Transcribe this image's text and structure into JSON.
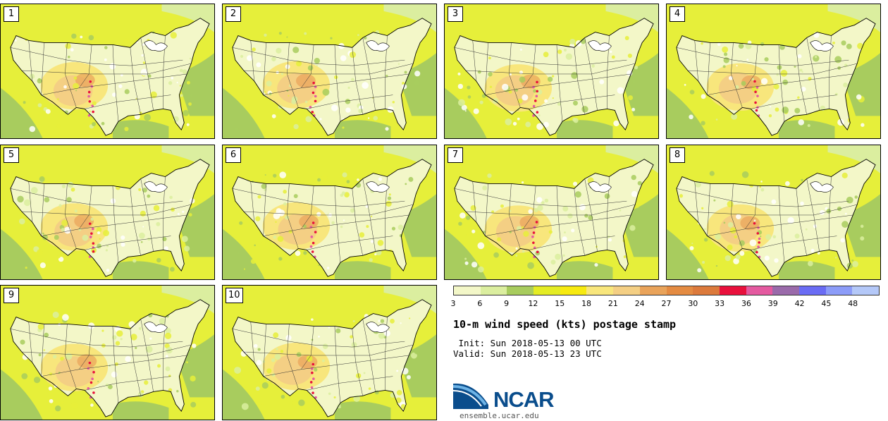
{
  "figure": {
    "title": "10-m wind speed (kts) postage stamp",
    "init_line": " Init: Sun 2018-05-13 00 UTC",
    "valid_line": "Valid: Sun 2018-05-13 23 UTC"
  },
  "panels": [
    "1",
    "2",
    "3",
    "4",
    "5",
    "6",
    "7",
    "8",
    "9",
    "10"
  ],
  "colorbar": {
    "ticks": [
      "3",
      "6",
      "9",
      "12",
      "15",
      "18",
      "21",
      "24",
      "27",
      "30",
      "33",
      "36",
      "39",
      "42",
      "45",
      "48"
    ],
    "colors": [
      "#f3f7c8",
      "#dbee9f",
      "#a8cc5e",
      "#e4ec24",
      "#f7ea10",
      "#f8e67c",
      "#f4cf84",
      "#e9a35a",
      "#e48b42",
      "#dc7a3c",
      "#e8103c",
      "#e45aa0",
      "#9a6aaa",
      "#6a6cf4",
      "#8c9cf8",
      "#b4c8f8"
    ]
  },
  "logo": {
    "name": "NCAR",
    "url": "ensemble.ucar.edu"
  }
}
